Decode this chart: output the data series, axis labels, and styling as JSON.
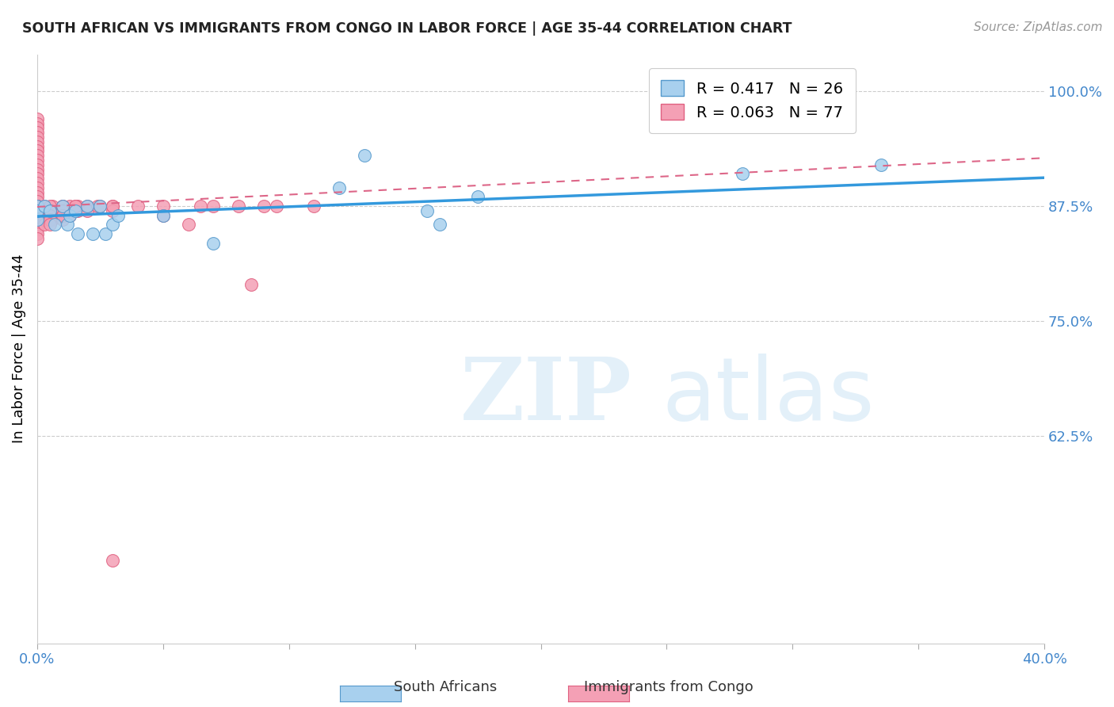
{
  "title": "SOUTH AFRICAN VS IMMIGRANTS FROM CONGO IN LABOR FORCE | AGE 35-44 CORRELATION CHART",
  "source": "Source: ZipAtlas.com",
  "ylabel": "In Labor Force | Age 35-44",
  "xlim": [
    0.0,
    0.4
  ],
  "ylim": [
    0.4,
    1.04
  ],
  "yticks": [
    0.625,
    0.75,
    0.875,
    1.0
  ],
  "ytick_labels": [
    "62.5%",
    "75.0%",
    "87.5%",
    "100.0%"
  ],
  "xticks": [
    0.0,
    0.05,
    0.1,
    0.15,
    0.2,
    0.25,
    0.3,
    0.35,
    0.4
  ],
  "xtick_labels": [
    "0.0%",
    "",
    "",
    "",
    "",
    "",
    "",
    "",
    "40.0%"
  ],
  "blue_R": 0.417,
  "blue_N": 26,
  "pink_R": 0.063,
  "pink_N": 77,
  "blue_face_color": "#a8d0ee",
  "pink_face_color": "#f4a0b5",
  "blue_edge_color": "#5599cc",
  "pink_edge_color": "#e06080",
  "blue_line_color": "#3399dd",
  "pink_line_color": "#dd6688",
  "grid_color": "#cccccc",
  "axis_tick_color": "#4488cc",
  "blue_scatter_x": [
    0.0,
    0.0,
    0.0,
    0.003,
    0.005,
    0.007,
    0.01,
    0.012,
    0.013,
    0.015,
    0.016,
    0.02,
    0.022,
    0.025,
    0.027,
    0.03,
    0.032,
    0.05,
    0.07,
    0.12,
    0.13,
    0.155,
    0.16,
    0.175,
    0.28,
    0.335
  ],
  "blue_scatter_y": [
    0.86,
    0.875,
    0.87,
    0.875,
    0.87,
    0.855,
    0.875,
    0.855,
    0.865,
    0.87,
    0.845,
    0.875,
    0.845,
    0.875,
    0.845,
    0.855,
    0.865,
    0.865,
    0.835,
    0.895,
    0.93,
    0.87,
    0.855,
    0.885,
    0.91,
    0.92
  ],
  "pink_scatter_x": [
    0.0,
    0.0,
    0.0,
    0.0,
    0.0,
    0.0,
    0.0,
    0.0,
    0.0,
    0.0,
    0.0,
    0.0,
    0.0,
    0.0,
    0.0,
    0.0,
    0.0,
    0.0,
    0.0,
    0.0,
    0.0,
    0.0,
    0.0,
    0.0,
    0.0,
    0.0,
    0.0,
    0.0,
    0.0,
    0.0,
    0.003,
    0.003,
    0.003,
    0.003,
    0.003,
    0.006,
    0.006,
    0.006,
    0.006,
    0.01,
    0.01,
    0.01,
    0.01,
    0.013,
    0.013,
    0.013,
    0.016,
    0.016,
    0.02,
    0.02,
    0.024,
    0.03,
    0.03,
    0.04,
    0.05,
    0.05,
    0.06,
    0.065,
    0.07,
    0.08,
    0.085,
    0.09,
    0.095,
    0.11,
    0.015,
    0.025,
    0.005,
    0.005,
    0.005,
    0.005,
    0.005,
    0.01,
    0.01,
    0.01,
    0.015,
    0.03,
    0.03
  ],
  "pink_scatter_y": [
    0.97,
    0.965,
    0.96,
    0.955,
    0.95,
    0.945,
    0.94,
    0.935,
    0.93,
    0.925,
    0.92,
    0.915,
    0.91,
    0.905,
    0.9,
    0.895,
    0.89,
    0.885,
    0.88,
    0.875,
    0.87,
    0.865,
    0.86,
    0.855,
    0.85,
    0.845,
    0.84,
    0.875,
    0.875,
    0.875,
    0.875,
    0.87,
    0.865,
    0.86,
    0.855,
    0.875,
    0.87,
    0.865,
    0.86,
    0.875,
    0.87,
    0.865,
    0.86,
    0.875,
    0.87,
    0.865,
    0.875,
    0.87,
    0.875,
    0.87,
    0.875,
    0.875,
    0.87,
    0.875,
    0.875,
    0.865,
    0.855,
    0.875,
    0.875,
    0.875,
    0.79,
    0.875,
    0.875,
    0.875,
    0.875,
    0.875,
    0.875,
    0.87,
    0.865,
    0.86,
    0.855,
    0.875,
    0.87,
    0.865,
    0.875,
    0.875,
    0.49
  ]
}
